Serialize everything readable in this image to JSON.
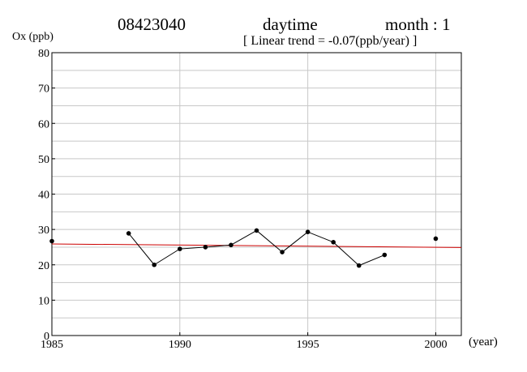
{
  "header": {
    "station": "08423040",
    "period": "daytime",
    "month": "month : 1",
    "trend": "[ Linear trend = -0.07(ppb/year) ]"
  },
  "chart_data": {
    "type": "line",
    "title": "08423040 daytime month : 1",
    "subtitle": "[ Linear trend = -0.07(ppb/year) ]",
    "ylabel": "Ox (ppb)",
    "xlabel": "(year)",
    "xlim": [
      1985,
      2001
    ],
    "ylim": [
      0,
      80
    ],
    "xticks": [
      1985,
      1990,
      1995,
      2000
    ],
    "yticks": [
      0,
      10,
      20,
      30,
      40,
      50,
      60,
      70,
      80
    ],
    "grid": true,
    "series": [
      {
        "color": "#000000",
        "points": [
          [
            1985,
            26.7
          ],
          [
            1988,
            28.9
          ],
          [
            1989,
            20.0
          ],
          [
            1990,
            24.5
          ],
          [
            1991,
            25.0
          ],
          [
            1992,
            25.6
          ],
          [
            1993,
            29.7
          ],
          [
            1994,
            23.6
          ],
          [
            1995,
            29.3
          ],
          [
            1996,
            26.4
          ],
          [
            1997,
            19.8
          ],
          [
            1998,
            22.8
          ],
          [
            2000,
            27.4
          ]
        ]
      }
    ],
    "trend_line": {
      "color": "#cc0000",
      "points": [
        [
          1985,
          25.9
        ],
        [
          2001,
          24.9
        ]
      ]
    }
  }
}
